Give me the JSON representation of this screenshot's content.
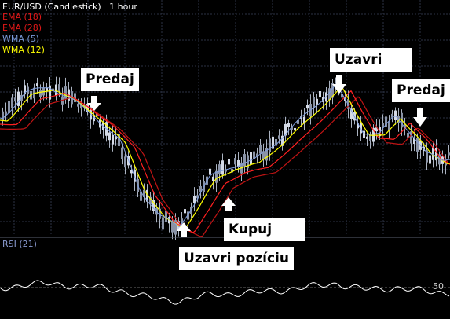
{
  "chart_data": {
    "type": "candlestick",
    "title": "EUR/USD (Candlestick)",
    "timeframe": "1 hour",
    "legend": [
      {
        "name": "EMA (18)",
        "color": "#e01818"
      },
      {
        "name": "EMA (28)",
        "color": "#e01818"
      },
      {
        "name": "WMA (5)",
        "color": "#7a9ad8"
      },
      {
        "name": "WMA (12)",
        "color": "#ffff00"
      }
    ],
    "indicator_panel": {
      "label": "RSI (21)",
      "level_label": "50",
      "color": "#ffffff"
    },
    "grid": true,
    "candle_color": "#c8d0dc",
    "annotations": [
      "Predaj",
      "Uzavri pozíciu",
      "Kupuj",
      "Uzavri",
      "Predaj"
    ]
  }
}
